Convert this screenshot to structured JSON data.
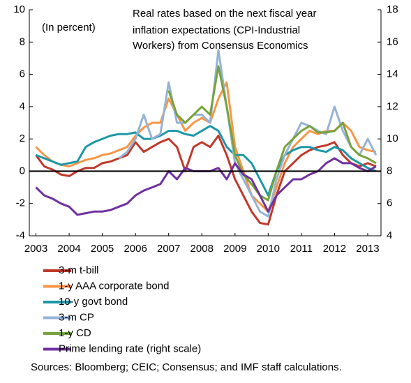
{
  "chart_data": {
    "type": "line",
    "annotations": [
      "(In percent)",
      "Real rates based on the next fiscal year",
      "inflation expectations  (CPI-Industrial",
      "Workers) from Consensus Economics"
    ],
    "source": "Sources: Bloomberg; CEIC; Consensus; and IMF staff calculations.",
    "x": [
      2003,
      2003.25,
      2003.5,
      2003.75,
      2004,
      2004.25,
      2004.5,
      2004.75,
      2005,
      2005.25,
      2005.5,
      2005.75,
      2006,
      2006.25,
      2006.5,
      2006.75,
      2007,
      2007.25,
      2007.5,
      2007.75,
      2008,
      2008.25,
      2008.5,
      2008.75,
      2009,
      2009.25,
      2009.5,
      2009.75,
      2010,
      2010.25,
      2010.5,
      2010.75,
      2011,
      2011.25,
      2011.5,
      2011.75,
      2012,
      2012.25,
      2012.5,
      2012.75,
      2013,
      2013.25
    ],
    "xlim": [
      2002.8,
      2013.4
    ],
    "xticks": [
      2003,
      2004,
      2005,
      2006,
      2007,
      2008,
      2009,
      2010,
      2011,
      2012,
      2013
    ],
    "ylim": [
      -4,
      10
    ],
    "yticks": [
      -4,
      -2,
      0,
      2,
      4,
      6,
      8,
      10
    ],
    "y2lim": [
      4,
      18
    ],
    "y2ticks": [
      4,
      6,
      8,
      10,
      12,
      14,
      16,
      18
    ],
    "series": [
      {
        "name": "3-m t-bill",
        "color": "#c0392b",
        "values": [
          1.0,
          0.3,
          0.1,
          -0.2,
          -0.3,
          0,
          0.2,
          0.2,
          0.5,
          0.6,
          0.8,
          1.0,
          1.8,
          1.2,
          1.5,
          1.8,
          2.0,
          1.5,
          0,
          1.5,
          1.8,
          1.5,
          2.2,
          1.0,
          -0.5,
          -1.5,
          -2.5,
          -3.2,
          -3.3,
          -1.5,
          0,
          0.5,
          1.0,
          1.3,
          1.5,
          1.6,
          1.8,
          1.0,
          0.5,
          0.3,
          0.5,
          0.3
        ]
      },
      {
        "name": "1-y AAA corporate bond",
        "color": "#f79646",
        "values": [
          1.5,
          1.0,
          0.6,
          0.4,
          0.3,
          0.5,
          0.7,
          0.8,
          1.0,
          1.1,
          1.3,
          1.5,
          2.2,
          2.7,
          3.0,
          3.0,
          4.5,
          3.5,
          2.5,
          3.0,
          3.3,
          3.0,
          4.5,
          5.5,
          1.5,
          0,
          -1.5,
          -2.0,
          -2.5,
          -1.0,
          0.5,
          1.5,
          2.0,
          2.5,
          2.3,
          2.5,
          2.5,
          3.0,
          2.5,
          1.5,
          1.3,
          1.2
        ]
      },
      {
        "name": "10-y govt bond",
        "color": "#1c97a8",
        "values": [
          1.0,
          0.8,
          0.6,
          0.4,
          0.5,
          0.6,
          1.5,
          1.8,
          2.0,
          2.2,
          2.3,
          2.3,
          2.4,
          2.0,
          2.0,
          2.2,
          2.5,
          2.5,
          2.3,
          2.2,
          2.5,
          2.8,
          2.5,
          1.5,
          1.0,
          1.0,
          0.5,
          -0.5,
          -1.5,
          0,
          1.0,
          1.3,
          1.5,
          1.5,
          1.3,
          1.2,
          1.5,
          1.3,
          0.8,
          0.5,
          0.2,
          0
        ]
      },
      {
        "name": "3-m CP",
        "color": "#95b3d7",
        "values": [
          null,
          null,
          null,
          null,
          null,
          null,
          null,
          null,
          null,
          null,
          0.8,
          1.2,
          2.0,
          3.5,
          2.0,
          2.3,
          5.5,
          3.0,
          3.0,
          3.5,
          3.5,
          3.0,
          7.5,
          4.0,
          0.5,
          -0.5,
          -1.5,
          -2.5,
          -2.8,
          -0.5,
          1.0,
          2.0,
          3.0,
          2.8,
          2.5,
          2.3,
          4.0,
          2.5,
          1.5,
          1.0,
          2.0,
          1.0
        ]
      },
      {
        "name": "1-y CD",
        "color": "#77a33c",
        "values": [
          null,
          null,
          null,
          null,
          null,
          null,
          null,
          null,
          null,
          null,
          null,
          null,
          null,
          null,
          null,
          null,
          5.0,
          3.5,
          3.0,
          3.5,
          4.0,
          3.5,
          6.5,
          4.0,
          1.0,
          -0.2,
          -0.8,
          -1.5,
          -1.8,
          0,
          1.5,
          2.0,
          2.5,
          2.8,
          2.4,
          2.4,
          2.5,
          3.0,
          1.5,
          1.0,
          0.8,
          0.5
        ]
      },
      {
        "name": "Prime lending rate (right scale)",
        "color": "#7030a0",
        "axis": "y2",
        "values": [
          7.0,
          6.5,
          6.3,
          6.0,
          5.8,
          5.3,
          5.4,
          5.5,
          5.5,
          5.6,
          5.8,
          6.0,
          6.5,
          6.8,
          7.0,
          7.2,
          8.0,
          7.5,
          8.2,
          8.0,
          8.0,
          8.0,
          8.2,
          7.5,
          8.5,
          7.8,
          7.5,
          6.5,
          5.5,
          6.5,
          7.0,
          7.5,
          7.5,
          7.8,
          8.0,
          8.5,
          8.8,
          8.5,
          8.5,
          8.2,
          8.0,
          8.3
        ]
      }
    ]
  }
}
